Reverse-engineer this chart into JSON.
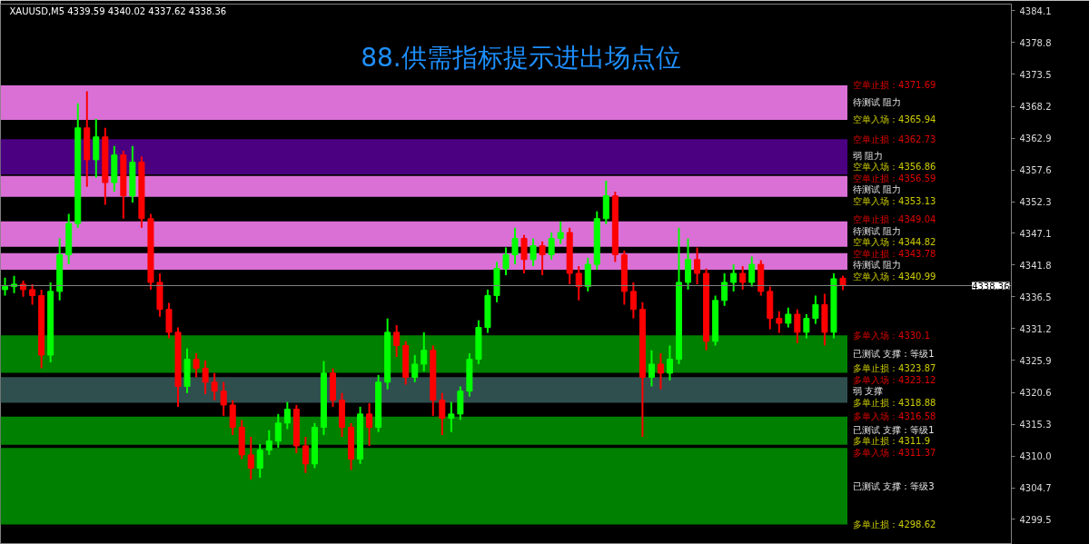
{
  "chart_data": {
    "type": "candlestick",
    "title": "88.供需指标提示进出场点位",
    "subtitle": "XAUUSD,M5 4339.59 4340.02 4337.62 4338.36",
    "categories": [
      null,
      null,
      null,
      null,
      null,
      null,
      null,
      null,
      null,
      null,
      null,
      null,
      null,
      null,
      null,
      null,
      null,
      null,
      null,
      null,
      null,
      null,
      null,
      null,
      null,
      null,
      null,
      null,
      null,
      null,
      null,
      null,
      null,
      null,
      null,
      null,
      null,
      null,
      null,
      null,
      null,
      null,
      null,
      null,
      null,
      null,
      null,
      null,
      null,
      null,
      null,
      null,
      null,
      null,
      null,
      null,
      null,
      null,
      null,
      null,
      null,
      null,
      null,
      null,
      null,
      null,
      null,
      null,
      null,
      null,
      null,
      null,
      null,
      null,
      null,
      null,
      null,
      null,
      null,
      null,
      null,
      null,
      null,
      null,
      null,
      null,
      null,
      null,
      null,
      null,
      null,
      null,
      null,
      null,
      null,
      null,
      null,
      null,
      null,
      null,
      null,
      null,
      null,
      null,
      null,
      null,
      null,
      null,
      null,
      null,
      null
    ],
    "ohlc": [
      [
        4337.7,
        4339.7,
        4336.7,
        4338.2
      ],
      [
        4338.2,
        4340.0,
        4337.1,
        4338.6
      ],
      [
        4338.6,
        4339.2,
        4336.5,
        4337.7
      ],
      [
        4337.7,
        4338.6,
        4335.2,
        4336.7
      ],
      [
        4336.7,
        4337.7,
        4324.6,
        4326.8
      ],
      [
        4326.8,
        4338.9,
        4325.6,
        4337.4
      ],
      [
        4337.4,
        4346.2,
        4335.9,
        4343.5
      ],
      [
        4343.5,
        4350.3,
        4341.9,
        4348.7
      ],
      [
        4348.7,
        4368.7,
        4348.0,
        4364.6
      ],
      [
        4364.6,
        4370.7,
        4354.8,
        4359.3
      ],
      [
        4359.3,
        4366.1,
        4356.3,
        4363.1
      ],
      [
        4363.1,
        4364.6,
        4351.8,
        4355.5
      ],
      [
        4355.5,
        4361.6,
        4354.0,
        4360.1
      ],
      [
        4360.1,
        4360.8,
        4349.5,
        4353.3
      ],
      [
        4353.3,
        4361.6,
        4352.2,
        4358.9
      ],
      [
        4358.9,
        4359.8,
        4348.0,
        4349.5
      ],
      [
        4349.5,
        4350.3,
        4337.7,
        4338.9
      ],
      [
        4338.9,
        4340.4,
        4333.2,
        4334.4
      ],
      [
        4334.4,
        4335.5,
        4329.6,
        4330.6
      ],
      [
        4330.6,
        4331.4,
        4318.2,
        4321.6
      ],
      [
        4321.6,
        4327.9,
        4320.5,
        4326.1
      ],
      [
        4326.1,
        4327.1,
        4323.1,
        4324.6
      ],
      [
        4324.6,
        4325.9,
        4320.3,
        4322.3
      ],
      [
        4322.3,
        4323.8,
        4319.3,
        4320.8
      ],
      [
        4320.8,
        4322.3,
        4316.7,
        4318.5
      ],
      [
        4318.5,
        4319.3,
        4313.5,
        4314.8
      ],
      [
        4314.8,
        4316.0,
        4309.5,
        4310.2
      ],
      [
        4310.2,
        4313.2,
        4306.1,
        4308.0
      ],
      [
        4308.0,
        4312.0,
        4306.4,
        4311.0
      ],
      [
        4311.0,
        4314.3,
        4310.2,
        4312.5
      ],
      [
        4312.5,
        4317.0,
        4311.4,
        4315.5
      ],
      [
        4315.5,
        4319.0,
        4314.5,
        4317.8
      ],
      [
        4317.8,
        4318.5,
        4310.5,
        4311.7
      ],
      [
        4311.7,
        4313.2,
        4307.2,
        4308.7
      ],
      [
        4308.7,
        4315.5,
        4308.0,
        4314.8
      ],
      [
        4314.8,
        4325.8,
        4313.5,
        4323.8
      ],
      [
        4323.8,
        4324.6,
        4318.2,
        4319.3
      ],
      [
        4319.3,
        4320.5,
        4313.2,
        4314.8
      ],
      [
        4314.8,
        4315.5,
        4307.7,
        4309.5
      ],
      [
        4309.5,
        4318.2,
        4308.7,
        4317.0
      ],
      [
        4317.0,
        4318.8,
        4311.7,
        4314.8
      ],
      [
        4314.8,
        4323.5,
        4314.0,
        4322.3
      ],
      [
        4322.3,
        4332.9,
        4321.1,
        4330.6
      ],
      [
        4330.6,
        4331.8,
        4326.5,
        4328.4
      ],
      [
        4328.4,
        4329.1,
        4321.9,
        4323.1
      ],
      [
        4323.1,
        4326.8,
        4322.3,
        4325.3
      ],
      [
        4325.3,
        4330.6,
        4324.1,
        4327.6
      ],
      [
        4327.6,
        4328.4,
        4316.7,
        4319.3
      ],
      [
        4319.3,
        4320.5,
        4313.5,
        4316.3
      ],
      [
        4316.3,
        4319.0,
        4314.0,
        4317.0
      ],
      [
        4317.0,
        4321.6,
        4316.0,
        4320.8
      ],
      [
        4320.8,
        4327.1,
        4319.9,
        4326.1
      ],
      [
        4326.1,
        4332.6,
        4325.3,
        4331.4
      ],
      [
        4331.4,
        4337.7,
        4330.5,
        4336.7
      ],
      [
        4336.7,
        4342.3,
        4335.6,
        4341.2
      ],
      [
        4341.2,
        4344.7,
        4340.1,
        4343.5
      ],
      [
        4343.5,
        4348.0,
        4341.9,
        4346.2
      ],
      [
        4346.2,
        4346.8,
        4340.4,
        4342.7
      ],
      [
        4342.7,
        4346.2,
        4341.6,
        4345.0
      ],
      [
        4345.0,
        4345.7,
        4340.1,
        4343.5
      ],
      [
        4343.5,
        4347.2,
        4342.7,
        4346.2
      ],
      [
        4346.2,
        4349.0,
        4345.3,
        4347.2
      ],
      [
        4347.2,
        4348.0,
        4338.6,
        4340.4
      ],
      [
        4340.4,
        4341.6,
        4335.9,
        4338.2
      ],
      [
        4338.2,
        4343.0,
        4337.4,
        4341.9
      ],
      [
        4341.9,
        4350.7,
        4341.0,
        4349.5
      ],
      [
        4349.5,
        4355.8,
        4348.6,
        4353.3
      ],
      [
        4353.3,
        4354.0,
        4342.3,
        4343.5
      ],
      [
        4343.5,
        4344.2,
        4335.2,
        4337.4
      ],
      [
        4337.4,
        4338.9,
        4332.9,
        4334.4
      ],
      [
        4334.4,
        4335.6,
        4313.2,
        4323.1
      ],
      [
        4323.1,
        4327.6,
        4321.6,
        4325.3
      ],
      [
        4325.3,
        4327.1,
        4321.1,
        4323.8
      ],
      [
        4323.8,
        4328.4,
        4322.6,
        4326.1
      ],
      [
        4326.1,
        4348.0,
        4325.3,
        4338.9
      ],
      [
        4338.9,
        4346.2,
        4337.7,
        4342.7
      ],
      [
        4342.7,
        4344.7,
        4338.6,
        4340.4
      ],
      [
        4340.4,
        4341.2,
        4327.6,
        4329.1
      ],
      [
        4329.1,
        4336.7,
        4328.4,
        4335.9
      ],
      [
        4335.9,
        4340.4,
        4335.0,
        4338.9
      ],
      [
        4338.9,
        4341.9,
        4337.4,
        4340.4
      ],
      [
        4340.4,
        4341.6,
        4337.7,
        4338.9
      ],
      [
        4338.9,
        4343.2,
        4338.2,
        4341.9
      ],
      [
        4341.9,
        4342.6,
        4336.7,
        4337.4
      ],
      [
        4337.4,
        4338.2,
        4331.1,
        4332.9
      ],
      [
        4332.9,
        4334.1,
        4330.5,
        4332.1
      ],
      [
        4332.1,
        4334.7,
        4331.4,
        4333.6
      ],
      [
        4333.6,
        4334.4,
        4328.8,
        4330.6
      ],
      [
        4330.6,
        4333.6,
        4329.6,
        4332.9
      ],
      [
        4332.9,
        4336.7,
        4332.0,
        4335.2
      ],
      [
        4335.2,
        4337.0,
        4328.4,
        4330.6
      ],
      [
        4330.6,
        4340.4,
        4329.6,
        4339.5
      ],
      [
        4339.59,
        4340.02,
        4337.62,
        4338.36
      ],
      null,
      null,
      null,
      null,
      null,
      null,
      null,
      null,
      null,
      null,
      null,
      null,
      null,
      null,
      null,
      null,
      null,
      null
    ],
    "colors": [
      "#00ff00",
      "#00ff00",
      "#ff0000",
      "#ff0000",
      "#ff0000",
      "#00ff00",
      "#00ff00",
      "#00ff00",
      "#00ff00",
      "#ff0000",
      "#00ff00",
      "#ff0000",
      "#00ff00",
      "#ff0000",
      "#00ff00",
      "#ff0000",
      "#ff0000",
      "#ff0000",
      "#ff0000",
      "#ff0000",
      "#00ff00",
      "#ff0000",
      "#ff0000",
      "#ff0000",
      "#ff0000",
      "#ff0000",
      "#ff0000",
      "#ff0000",
      "#00ff00",
      "#00ff00",
      "#00ff00",
      "#00ff00",
      "#ff0000",
      "#ff0000",
      "#00ff00",
      "#00ff00",
      "#ff0000",
      "#ff0000",
      "#ff0000",
      "#00ff00",
      "#ff0000",
      "#00ff00",
      "#00ff00",
      "#ff0000",
      "#ff0000",
      "#00ff00",
      "#00ff00",
      "#ff0000",
      "#ff0000",
      "#00ff00",
      "#00ff00",
      "#00ff00",
      "#00ff00",
      "#00ff00",
      "#00ff00",
      "#00ff00",
      "#00ff00",
      "#ff0000",
      "#00ff00",
      "#ff0000",
      "#00ff00",
      "#00ff00",
      "#ff0000",
      "#ff0000",
      "#00ff00",
      "#00ff00",
      "#00ff00",
      "#ff0000",
      "#ff0000",
      "#ff0000",
      "#ff0000",
      "#00ff00",
      "#ff0000",
      "#00ff00",
      "#00ff00",
      "#00ff00",
      "#ff0000",
      "#ff0000",
      "#00ff00",
      "#00ff00",
      "#00ff00",
      "#ff0000",
      "#00ff00",
      "#ff0000",
      "#ff0000",
      "#ff0000",
      "#00ff00",
      "#ff0000",
      "#00ff00",
      "#00ff00",
      "#ff0000",
      "#00ff00",
      "#ff0000",
      null,
      null,
      null,
      null,
      null,
      null,
      null,
      null,
      null,
      null,
      null,
      null,
      null,
      null,
      null,
      null,
      null,
      null
    ],
    "bands": [
      {
        "axis": "y",
        "from": 4365.94,
        "to": 4371.69,
        "label": "待测试 阻力",
        "color": "#da70d6"
      },
      {
        "axis": "y",
        "from": 4356.86,
        "to": 4362.73,
        "label": "弱 阻力",
        "color": "#4b0082"
      },
      {
        "axis": "y",
        "from": 4353.13,
        "to": 4356.59,
        "label": "待测试 阻力",
        "color": "#da70d6"
      },
      {
        "axis": "y",
        "from": 4344.82,
        "to": 4349.04,
        "label": "待测试 阻力",
        "color": "#da70d6"
      },
      {
        "axis": "y",
        "from": 4340.99,
        "to": 4343.78,
        "label": "待测试 阻力",
        "color": "#da70d6"
      },
      {
        "axis": "y",
        "from": 4323.87,
        "to": 4330.1,
        "label": "已测试 支撑：等级1",
        "color": "#008000"
      },
      {
        "axis": "y",
        "from": 4318.88,
        "to": 4323.12,
        "label": "弱 支撑",
        "color": "#2f4f4f"
      },
      {
        "axis": "y",
        "from": 4311.9,
        "to": 4316.58,
        "label": "已测试 支撑：等级1",
        "color": "#008000"
      },
      {
        "axis": "y",
        "from": 4298.62,
        "to": 4311.37,
        "label": "已测试 支撑：等级3",
        "color": "#008000"
      }
    ],
    "ylim": [
      4295.3,
      4385.2
    ],
    "yticks": [
      4384.1,
      4378.8,
      4373.5,
      4368.2,
      4362.9,
      4357.6,
      4352.3,
      4347.1,
      4341.8,
      4336.5,
      4331.2,
      4325.9,
      4320.6,
      4315.3,
      {
        "value": 4310,
        "label": "4310.0"
      },
      4304.7,
      4299.5
    ],
    "tick_labels": "y",
    "ref_lines": [
      {
        "axis": "y",
        "value": 4338.36,
        "label": "4338.36",
        "color": "#808080"
      }
    ],
    "annotations": [
      "空单止损：4371.69",
      "空单入场：4365.94",
      "空单止损：4362.73",
      "空单入场：4356.86",
      "空单止损：4356.59",
      "空单入场：4353.13",
      "空单止损：4349.04",
      "空单入场：4344.82",
      "空单止损：4343.78",
      "空单入场：4340.99",
      "多单入场：4330.1",
      "多单止损：4323.87",
      "多单入场：4323.12",
      "多单止损：4318.88",
      "多单入场：4316.58",
      "多单止损：4311.9",
      "多单入场：4311.37",
      "多单止损：4298.62"
    ]
  }
}
